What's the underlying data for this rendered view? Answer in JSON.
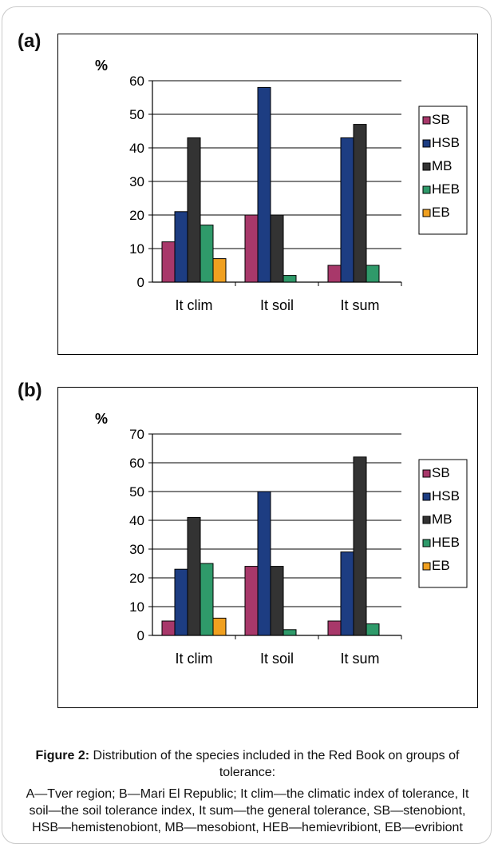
{
  "panels": [
    {
      "label": "(a)"
    },
    {
      "label": "(b)"
    }
  ],
  "caption": {
    "figure": "Figure 2:",
    "title": " Distribution of the species included in the Red Book on groups of tolerance:",
    "notes": "A—Tver region; B—Mari El Republic; It clim—the climatic index of tolerance, It soil—the soil tolerance index, It sum—the general tolerance, SB—stenobiont, HSB—hemistenobiont, MB—mesobiont, HEB—hemievribiont, EB—evribiont"
  },
  "chart_data": [
    {
      "type": "bar",
      "ylabel": "%",
      "categories": [
        "It clim",
        "It soil",
        "It sum"
      ],
      "ylim": [
        0,
        60
      ],
      "yticks": [
        0,
        10,
        20,
        30,
        40,
        50,
        60
      ],
      "grid": true,
      "legend_position": "right",
      "series": [
        {
          "name": "SB",
          "color": "#a8386a",
          "values": [
            12,
            20,
            5
          ]
        },
        {
          "name": "HSB",
          "color": "#1d3d82",
          "values": [
            21,
            58,
            43
          ]
        },
        {
          "name": "MB",
          "color": "#333333",
          "values": [
            43,
            20,
            47
          ]
        },
        {
          "name": "HEB",
          "color": "#2f9a6a",
          "values": [
            17,
            2,
            5
          ]
        },
        {
          "name": "EB",
          "color": "#f0a020",
          "values": [
            7,
            0,
            0
          ]
        }
      ]
    },
    {
      "type": "bar",
      "ylabel": "%",
      "categories": [
        "It clim",
        "It soil",
        "It sum"
      ],
      "ylim": [
        0,
        70
      ],
      "yticks": [
        0,
        10,
        20,
        30,
        40,
        50,
        60,
        70
      ],
      "grid": true,
      "legend_position": "right",
      "series": [
        {
          "name": "SB",
          "color": "#a8386a",
          "values": [
            5,
            24,
            5
          ]
        },
        {
          "name": "HSB",
          "color": "#1d3d82",
          "values": [
            23,
            50,
            29
          ]
        },
        {
          "name": "MB",
          "color": "#333333",
          "values": [
            41,
            24,
            62
          ]
        },
        {
          "name": "HEB",
          "color": "#2f9a6a",
          "values": [
            25,
            2,
            4
          ]
        },
        {
          "name": "EB",
          "color": "#f0a020",
          "values": [
            6,
            0,
            0
          ]
        }
      ]
    }
  ]
}
